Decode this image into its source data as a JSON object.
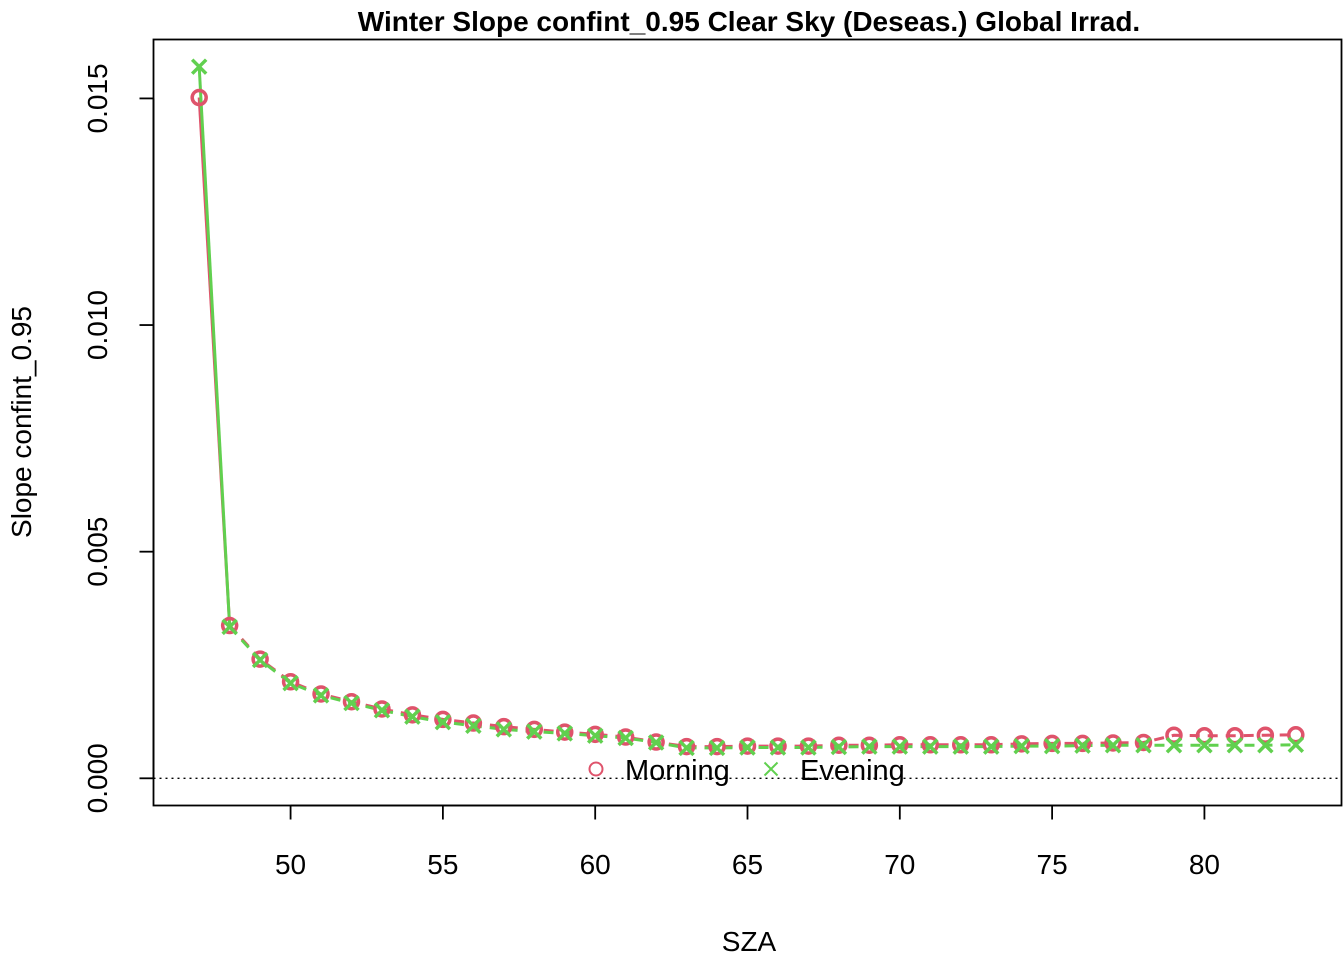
{
  "chart_data": {
    "type": "line",
    "title": "Winter Slope confint_0.95 Clear Sky (Deseas.) Global Irrad.",
    "xlabel": "SZA",
    "ylabel": "Slope confint_0.95",
    "xlim": [
      45.5,
      84.5
    ],
    "ylim": [
      -0.0006,
      0.0163
    ],
    "x_ticks": [
      "50",
      "55",
      "60",
      "65",
      "70",
      "75",
      "80"
    ],
    "y_ticks": [
      "0.000",
      "0.005",
      "0.010",
      "0.015"
    ],
    "reference_line": {
      "y": 0,
      "style": "dotted"
    },
    "legend": {
      "position": "bottom-center",
      "entries": [
        "Morning",
        "Evening"
      ]
    },
    "series": [
      {
        "name": "Morning",
        "color": "#DF536B",
        "marker": "circle",
        "x": [
          47,
          48,
          49,
          50,
          51,
          52,
          53,
          54,
          55,
          56,
          57,
          58,
          59,
          60,
          61,
          62,
          63,
          64,
          65,
          66,
          67,
          68,
          69,
          70,
          71,
          72,
          73,
          74,
          75,
          76,
          77,
          78,
          79,
          80,
          81,
          82,
          83
        ],
        "y": [
          0.01502,
          0.00337,
          0.00263,
          0.00213,
          0.00186,
          0.00169,
          0.00153,
          0.0014,
          0.0013,
          0.00122,
          0.00114,
          0.00108,
          0.00102,
          0.00097,
          0.00091,
          0.0008,
          0.0007,
          0.0007,
          0.00071,
          0.00071,
          0.00071,
          0.00073,
          0.00073,
          0.00074,
          0.00074,
          0.00074,
          0.00074,
          0.00076,
          0.00077,
          0.00077,
          0.00078,
          0.00079,
          0.00095,
          0.00094,
          0.00094,
          0.00095,
          0.00096
        ]
      },
      {
        "name": "Evening",
        "color": "#61D04F",
        "marker": "cross",
        "x": [
          47,
          48,
          49,
          50,
          51,
          52,
          53,
          54,
          55,
          56,
          57,
          58,
          59,
          60,
          61,
          62,
          63,
          64,
          65,
          66,
          67,
          68,
          69,
          70,
          71,
          72,
          73,
          74,
          75,
          76,
          77,
          78,
          79,
          80,
          81,
          82,
          83
        ],
        "y": [
          0.0157,
          0.00334,
          0.00261,
          0.0021,
          0.00183,
          0.00166,
          0.0015,
          0.00136,
          0.00124,
          0.00116,
          0.00108,
          0.00103,
          0.00099,
          0.00094,
          0.00089,
          0.00079,
          0.00067,
          0.00067,
          0.00068,
          0.00068,
          0.00068,
          0.00069,
          0.0007,
          0.0007,
          0.0007,
          0.0007,
          0.0007,
          0.00071,
          0.00071,
          0.00072,
          0.00073,
          0.00073,
          0.00073,
          0.00073,
          0.00073,
          0.00073,
          0.00074
        ]
      }
    ]
  }
}
